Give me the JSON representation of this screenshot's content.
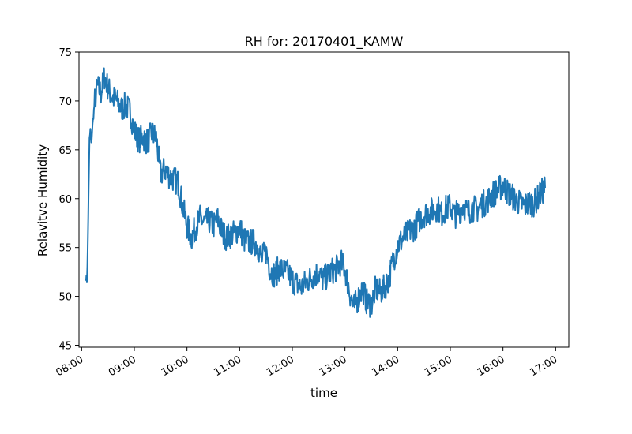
{
  "chart_data": {
    "type": "line",
    "title": "RH for: 20170401_KAMW",
    "xlabel": "time",
    "ylabel": "Relavitve Humidity",
    "xlim": [
      "07:57",
      "17:15"
    ],
    "ylim": [
      44.8,
      75
    ],
    "x_tick_labels": [
      "08:00",
      "09:00",
      "10:00",
      "11:00",
      "12:00",
      "13:00",
      "14:00",
      "15:00",
      "16:00",
      "17:00"
    ],
    "y_tick_labels": [
      "45",
      "50",
      "55",
      "60",
      "65",
      "70",
      "75"
    ],
    "grid": false,
    "legend": "none",
    "series": [
      {
        "color": "#1f77b4",
        "x": [
          "08:05",
          "08:06",
          "08:07",
          "08:08",
          "08:09",
          "08:10",
          "08:11",
          "08:12",
          "08:15",
          "08:18",
          "08:22",
          "08:26",
          "08:30",
          "08:35",
          "08:40",
          "08:45",
          "08:50",
          "08:55",
          "09:00",
          "09:05",
          "09:10",
          "09:15",
          "09:20",
          "09:25",
          "09:30",
          "09:35",
          "09:40",
          "09:45",
          "09:50",
          "09:55",
          "10:00",
          "10:05",
          "10:10",
          "10:15",
          "10:20",
          "10:25",
          "10:30",
          "10:35",
          "10:40",
          "10:45",
          "10:50",
          "10:55",
          "11:00",
          "11:05",
          "11:10",
          "11:15",
          "11:20",
          "11:25",
          "11:30",
          "11:35",
          "11:40",
          "11:45",
          "11:50",
          "11:55",
          "12:00",
          "12:05",
          "12:10",
          "12:15",
          "12:20",
          "12:25",
          "12:30",
          "12:35",
          "12:40",
          "12:45",
          "12:50",
          "12:55",
          "13:00",
          "13:05",
          "13:10",
          "13:15",
          "13:20",
          "13:25",
          "13:30",
          "13:35",
          "13:40",
          "13:45",
          "13:50",
          "13:55",
          "14:00",
          "14:05",
          "14:10",
          "14:15",
          "14:20",
          "14:25",
          "14:30",
          "14:35",
          "14:40",
          "14:45",
          "14:50",
          "14:55",
          "15:00",
          "15:05",
          "15:10",
          "15:15",
          "15:20",
          "15:25",
          "15:30",
          "15:35",
          "15:40",
          "15:45",
          "15:50",
          "15:55",
          "16:00",
          "16:05",
          "16:10",
          "16:15",
          "16:20",
          "16:25",
          "16:30",
          "16:35",
          "16:40",
          "16:45",
          "16:48"
        ],
        "y": [
          52,
          51.6,
          55,
          61,
          66,
          67,
          65.5,
          67,
          70,
          71.5,
          70.8,
          72.5,
          71.3,
          70.4,
          70,
          69.2,
          69.5,
          69,
          67,
          66,
          66.3,
          65.8,
          66.7,
          66.2,
          62.5,
          63,
          62.3,
          62,
          61.6,
          59.3,
          57.2,
          56,
          57.1,
          58,
          57.5,
          57.8,
          57.2,
          57.9,
          56.6,
          56,
          56.3,
          56.5,
          57.1,
          55.8,
          55.5,
          55.6,
          55.3,
          53.8,
          54.6,
          52.7,
          52.2,
          52.9,
          52.6,
          52.4,
          51.7,
          51.3,
          50.9,
          51.4,
          51.8,
          52.2,
          52.4,
          51.7,
          52.1,
          52.6,
          52.8,
          53.5,
          52.8,
          50.6,
          48.8,
          49.8,
          50.8,
          49.4,
          49.2,
          50.8,
          50.4,
          50.9,
          51.8,
          53.7,
          55.2,
          55.8,
          56.3,
          56.8,
          57.1,
          57.9,
          58.4,
          58.6,
          58.8,
          59.1,
          58.4,
          59.0,
          59.2,
          58.3,
          58.7,
          59.4,
          58.5,
          59.1,
          58.8,
          59.4,
          59.6,
          60.1,
          60.6,
          60.9,
          61.4,
          60.7,
          60.3,
          59.8,
          59.5,
          59.3,
          59.6,
          59.5,
          60.1,
          60.8,
          61.1
        ]
      }
    ]
  }
}
